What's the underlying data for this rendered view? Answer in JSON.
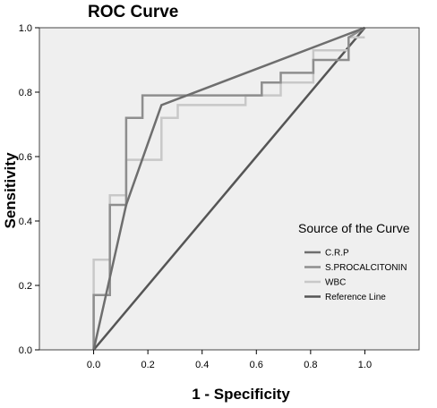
{
  "chart_data": {
    "type": "line",
    "title": "ROC Curve",
    "xlabel": "1 - Specificity",
    "ylabel": "Sensitivity",
    "xlim": [
      -0.2,
      1.2
    ],
    "ylim": [
      0.0,
      1.0
    ],
    "xticks": [
      "0.0",
      "0.2",
      "0.4",
      "0.6",
      "0.8",
      "1.0"
    ],
    "yticks": [
      "0.0",
      "0.2",
      "0.4",
      "0.6",
      "0.8",
      "1.0"
    ],
    "grid": false,
    "legend": {
      "title": "Source of the Curve",
      "placement": "right"
    },
    "series": [
      {
        "name": "C.R.P",
        "color": "#6e6e6e",
        "x": [
          0.0,
          0.12,
          0.25,
          1.0
        ],
        "y": [
          0.0,
          0.45,
          0.76,
          1.0
        ]
      },
      {
        "name": "S.PROCALCITONIN",
        "color": "#8e8e8e",
        "x": [
          0.0,
          0.0,
          0.06,
          0.06,
          0.12,
          0.12,
          0.18,
          0.18,
          0.56,
          0.56,
          0.62,
          0.62,
          0.69,
          0.69,
          0.75,
          0.75,
          0.81,
          0.81,
          0.94,
          0.94,
          1.0
        ],
        "y": [
          0.0,
          0.17,
          0.17,
          0.45,
          0.45,
          0.72,
          0.72,
          0.79,
          0.79,
          0.79,
          0.79,
          0.83,
          0.83,
          0.86,
          0.86,
          0.86,
          0.86,
          0.9,
          0.9,
          0.97,
          1.0
        ]
      },
      {
        "name": "WBC",
        "color": "#c8c8c8",
        "x": [
          0.0,
          0.0,
          0.06,
          0.06,
          0.12,
          0.12,
          0.25,
          0.25,
          0.31,
          0.31,
          0.56,
          0.56,
          0.69,
          0.69,
          0.75,
          0.75,
          0.81,
          0.81,
          0.94,
          0.94,
          1.0
        ],
        "y": [
          0.0,
          0.28,
          0.28,
          0.48,
          0.48,
          0.59,
          0.59,
          0.72,
          0.72,
          0.76,
          0.76,
          0.79,
          0.79,
          0.83,
          0.83,
          0.83,
          0.83,
          0.93,
          0.93,
          0.97,
          0.97
        ]
      },
      {
        "name": "Reference Line",
        "color": "#555555",
        "x": [
          0.0,
          1.0
        ],
        "y": [
          0.0,
          1.0
        ]
      }
    ]
  },
  "colors": {
    "plot_background": "#efefef",
    "frame": "#444444"
  }
}
